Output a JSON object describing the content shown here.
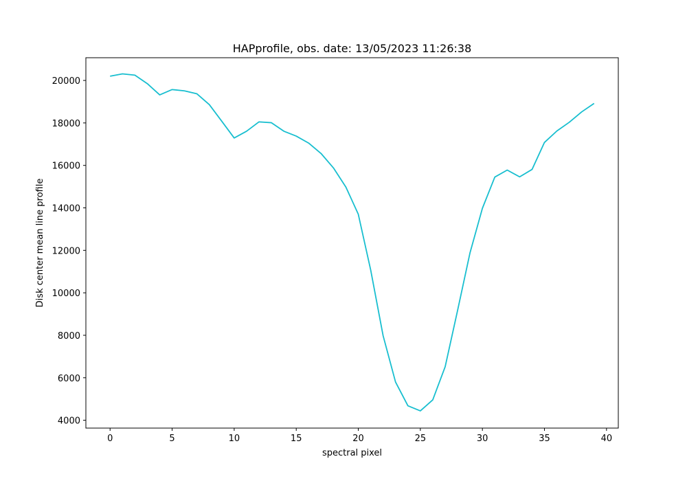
{
  "chart_data": {
    "type": "line",
    "title": "HAPprofile, obs. date: 13/05/2023 11:26:38",
    "xlabel": "spectral pixel",
    "ylabel": "Disk center mean line profile",
    "xlim": [
      -1.95,
      40.95
    ],
    "ylim": [
      3630,
      21070
    ],
    "xticks": [
      0,
      5,
      10,
      15,
      20,
      25,
      30,
      35,
      40
    ],
    "yticks": [
      4000,
      6000,
      8000,
      10000,
      12000,
      14000,
      16000,
      18000,
      20000
    ],
    "grid": false,
    "legend": "none",
    "series": [
      {
        "color": "#17becf",
        "x": [
          0,
          1,
          2,
          3,
          4,
          5,
          6,
          7,
          8,
          9,
          10,
          11,
          12,
          13,
          14,
          15,
          16,
          17,
          18,
          19,
          20,
          21,
          22,
          23,
          24,
          25,
          26,
          27,
          28,
          29,
          30,
          31,
          32,
          33,
          34,
          35,
          36,
          37,
          38,
          39
        ],
        "y": [
          20200,
          20310,
          20250,
          19850,
          19320,
          19570,
          19510,
          19370,
          18860,
          18080,
          17290,
          17610,
          18050,
          18010,
          17610,
          17380,
          17050,
          16560,
          15880,
          14980,
          13700,
          11070,
          7980,
          5800,
          4680,
          4440,
          4960,
          6520,
          9170,
          11880,
          13980,
          15450,
          15780,
          15460,
          15810,
          17080,
          17620,
          18030,
          18520,
          18920
        ]
      }
    ]
  }
}
